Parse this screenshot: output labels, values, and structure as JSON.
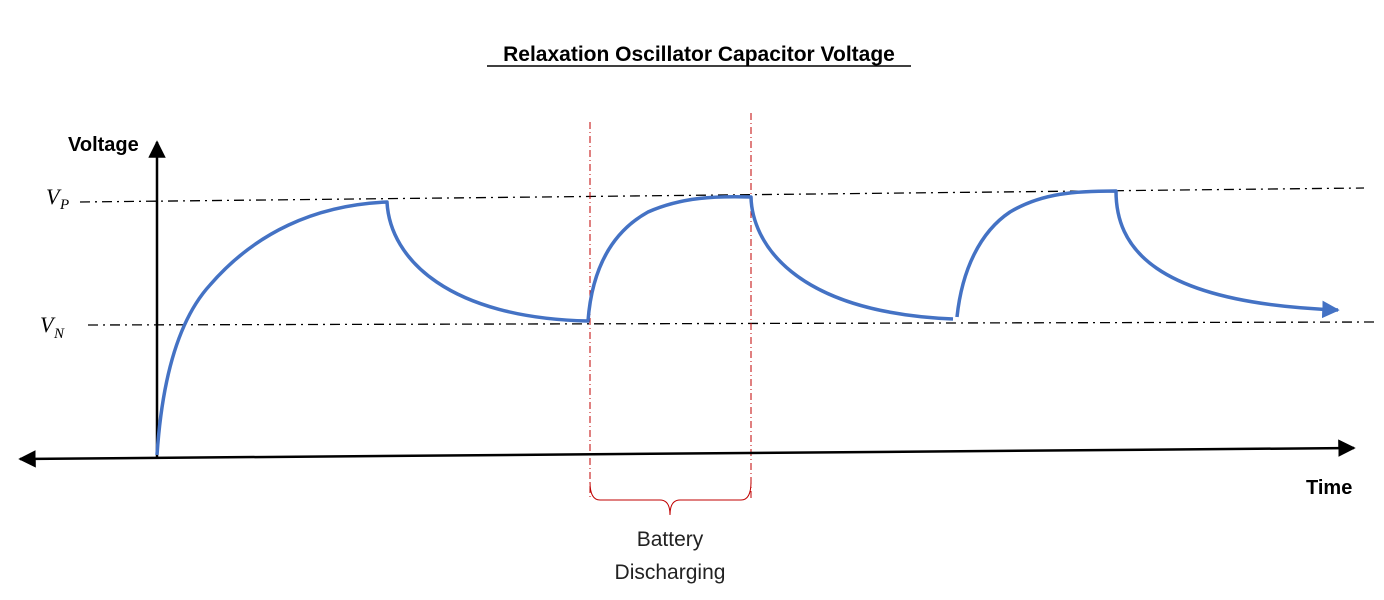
{
  "title": "Relaxation Oscillator Capacitor Voltage",
  "axes": {
    "y_label": "Voltage",
    "x_label": "Time"
  },
  "levels": {
    "vp": {
      "symbol": "V",
      "subscript": "P"
    },
    "vn": {
      "symbol": "V",
      "subscript": "N"
    }
  },
  "annotation": {
    "line1": "Battery",
    "line2": "Discharging"
  },
  "colors": {
    "waveform": "#4472C4",
    "axes": "#000000",
    "reference_lines": "#000000",
    "annotation": "#C00000"
  }
}
